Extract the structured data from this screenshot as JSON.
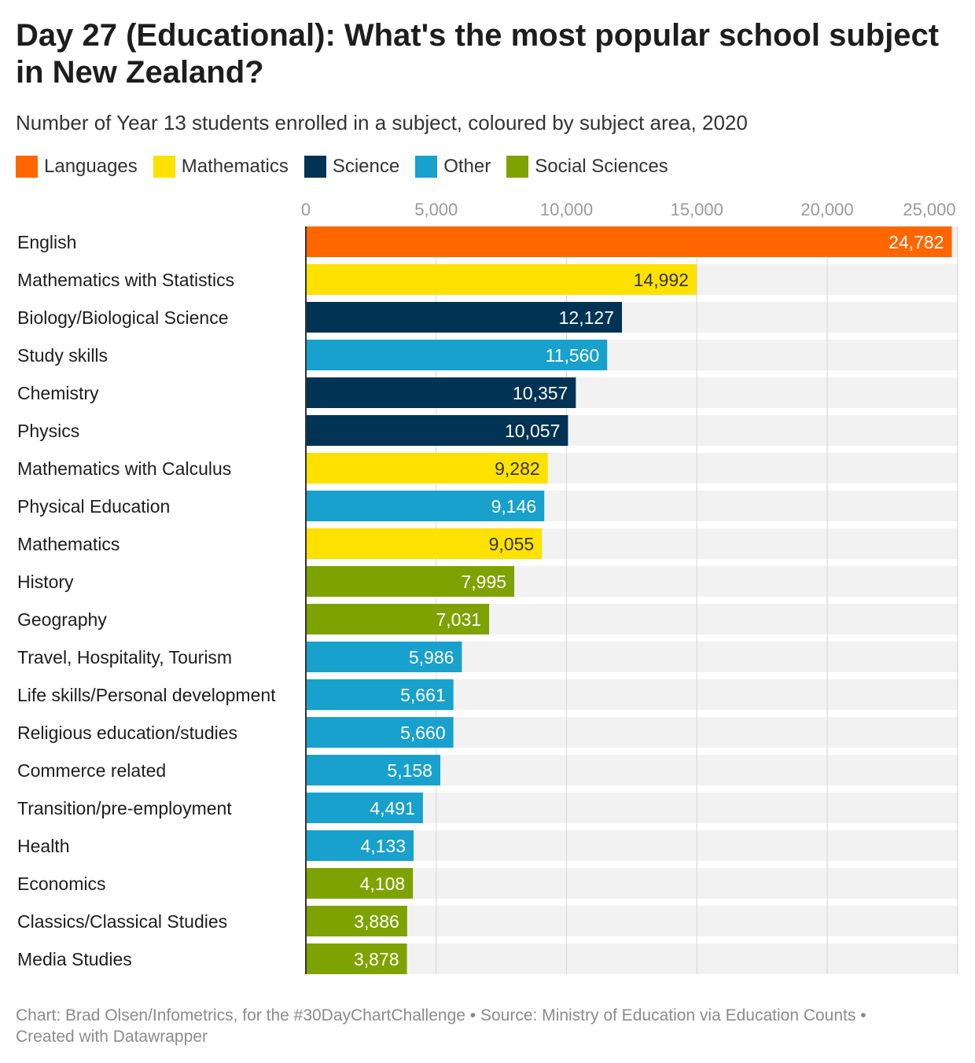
{
  "header": {
    "title": "Day 27 (Educational): What's the most popular school subject in New Zealand?",
    "subtitle": "Number of Year 13 students enrolled in a subject, coloured by subject area, 2020"
  },
  "legend": [
    {
      "label": "Languages",
      "color": "#ff6600"
    },
    {
      "label": "Mathematics",
      "color": "#ffe100"
    },
    {
      "label": "Science",
      "color": "#003354"
    },
    {
      "label": "Other",
      "color": "#18a1cd"
    },
    {
      "label": "Social Sciences",
      "color": "#7ea300"
    }
  ],
  "chart_data": {
    "type": "bar",
    "orientation": "horizontal",
    "xlim": [
      0,
      25000
    ],
    "ticks": [
      0,
      5000,
      10000,
      15000,
      20000,
      25000
    ],
    "tick_labels": [
      "0",
      "5,000",
      "10,000",
      "15,000",
      "20,000",
      "25,000"
    ],
    "grid": true,
    "categories": [
      "English",
      "Mathematics with Statistics",
      "Biology/Biological Science",
      "Study skills",
      "Chemistry",
      "Physics",
      "Mathematics with Calculus",
      "Physical Education",
      "Mathematics",
      "History",
      "Geography",
      "Travel, Hospitality, Tourism",
      "Life skills/Personal development",
      "Religious education/studies",
      "Commerce related",
      "Transition/pre-employment",
      "Health",
      "Economics",
      "Classics/Classical Studies",
      "Media Studies"
    ],
    "values": [
      24782,
      14992,
      12127,
      11560,
      10357,
      10057,
      9282,
      9146,
      9055,
      7995,
      7031,
      5986,
      5661,
      5660,
      5158,
      4491,
      4133,
      4108,
      3886,
      3878
    ],
    "value_labels": [
      "24,782",
      "14,992",
      "12,127",
      "11,560",
      "10,357",
      "10,057",
      "9,282",
      "9,146",
      "9,055",
      "7,995",
      "7,031",
      "5,986",
      "5,661",
      "5,660",
      "5,158",
      "4,491",
      "4,133",
      "4,108",
      "3,886",
      "3,878"
    ],
    "groups": [
      "Languages",
      "Mathematics",
      "Science",
      "Other",
      "Science",
      "Science",
      "Mathematics",
      "Other",
      "Mathematics",
      "Social Sciences",
      "Social Sciences",
      "Other",
      "Other",
      "Other",
      "Other",
      "Other",
      "Other",
      "Social Sciences",
      "Social Sciences",
      "Social Sciences"
    ],
    "legend_position": "top-left"
  },
  "footer": {
    "line1": "Chart: Brad Olsen/Infometrics, for the #30DayChartChallenge • Source: Ministry of Education via Education Counts •",
    "line2": "Created with Datawrapper"
  }
}
